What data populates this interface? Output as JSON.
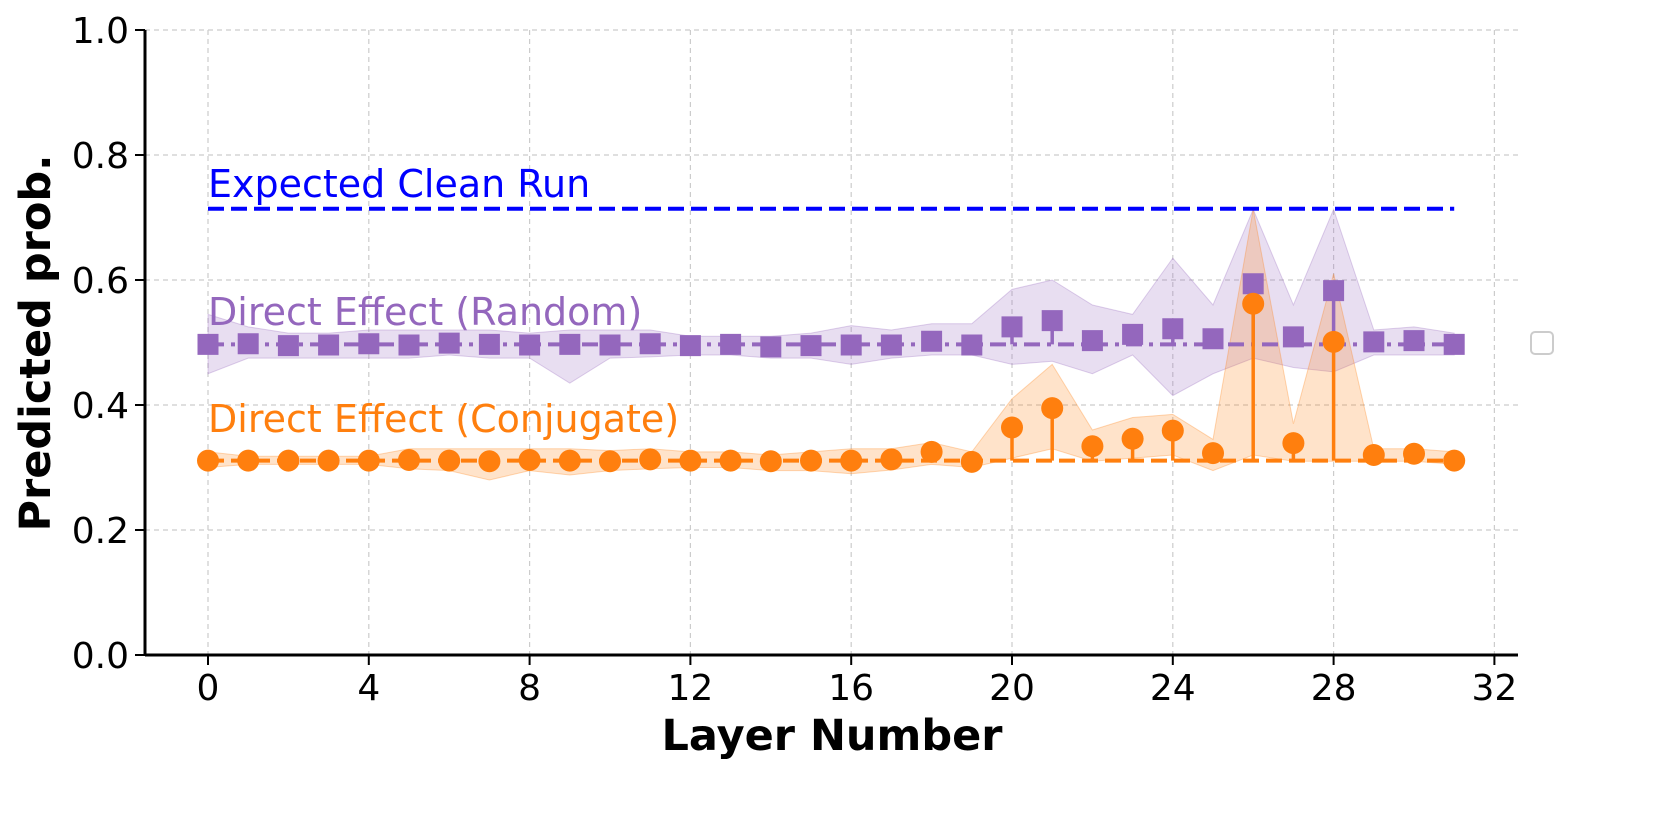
{
  "chart_data": {
    "type": "line",
    "xlabel": "Layer Number",
    "ylabel": "Predicted prob.",
    "xlim": [
      -1.5,
      32.6
    ],
    "ylim": [
      0.0,
      1.0
    ],
    "xticks": [
      0,
      4,
      8,
      12,
      16,
      20,
      24,
      28,
      32
    ],
    "yticks": [
      "0.0",
      "0.2",
      "0.4",
      "0.6",
      "0.8",
      "1.0"
    ],
    "grid": true,
    "grid_style": "dashed",
    "legend": "empty box at right edge",
    "reference_line": {
      "label": "Expected Clean Run",
      "value": 0.714,
      "x_range": [
        0,
        31
      ],
      "color": "#0000ff",
      "style": "dashed"
    },
    "series": [
      {
        "name": "Direct Effect (Random)",
        "color": "#9467bd",
        "marker": "square",
        "baseline": 0.497,
        "baseline_style": "dashdot",
        "x": [
          0,
          1,
          2,
          3,
          4,
          5,
          6,
          7,
          8,
          9,
          10,
          11,
          12,
          13,
          14,
          15,
          16,
          17,
          18,
          19,
          20,
          21,
          22,
          23,
          24,
          25,
          26,
          27,
          28,
          29,
          30,
          31
        ],
        "values": [
          0.497,
          0.498,
          0.495,
          0.496,
          0.498,
          0.496,
          0.499,
          0.497,
          0.496,
          0.497,
          0.496,
          0.498,
          0.495,
          0.497,
          0.493,
          0.495,
          0.496,
          0.496,
          0.502,
          0.496,
          0.525,
          0.535,
          0.503,
          0.513,
          0.522,
          0.506,
          0.594,
          0.509,
          0.583,
          0.501,
          0.503,
          0.497
        ],
        "band_upper": [
          0.545,
          0.525,
          0.515,
          0.515,
          0.52,
          0.52,
          0.52,
          0.52,
          0.515,
          0.52,
          0.52,
          0.52,
          0.51,
          0.51,
          0.51,
          0.515,
          0.527,
          0.52,
          0.53,
          0.53,
          0.585,
          0.6,
          0.56,
          0.545,
          0.635,
          0.56,
          0.713,
          0.56,
          0.713,
          0.52,
          0.525,
          0.515
        ],
        "band_lower": [
          0.45,
          0.475,
          0.475,
          0.475,
          0.475,
          0.475,
          0.48,
          0.475,
          0.475,
          0.435,
          0.475,
          0.477,
          0.48,
          0.48,
          0.475,
          0.475,
          0.465,
          0.475,
          0.48,
          0.48,
          0.465,
          0.47,
          0.45,
          0.48,
          0.415,
          0.45,
          0.475,
          0.46,
          0.453,
          0.48,
          0.48,
          0.48
        ]
      },
      {
        "name": "Direct Effect (Conjugate)",
        "color": "#ff7f0e",
        "marker": "circle",
        "baseline": 0.311,
        "baseline_style": "dashed",
        "x": [
          0,
          1,
          2,
          3,
          4,
          5,
          6,
          7,
          8,
          9,
          10,
          11,
          12,
          13,
          14,
          15,
          16,
          17,
          18,
          19,
          20,
          21,
          22,
          23,
          24,
          25,
          26,
          27,
          28,
          29,
          30,
          31
        ],
        "values": [
          0.311,
          0.311,
          0.311,
          0.311,
          0.311,
          0.312,
          0.311,
          0.31,
          0.312,
          0.311,
          0.31,
          0.313,
          0.311,
          0.311,
          0.31,
          0.311,
          0.311,
          0.313,
          0.325,
          0.309,
          0.364,
          0.395,
          0.334,
          0.346,
          0.359,
          0.323,
          0.562,
          0.339,
          0.501,
          0.32,
          0.322,
          0.311
        ],
        "band_upper": [
          0.325,
          0.318,
          0.318,
          0.318,
          0.318,
          0.33,
          0.33,
          0.33,
          0.33,
          0.33,
          0.327,
          0.33,
          0.325,
          0.325,
          0.32,
          0.325,
          0.33,
          0.33,
          0.34,
          0.325,
          0.41,
          0.465,
          0.36,
          0.38,
          0.385,
          0.345,
          0.713,
          0.37,
          0.61,
          0.33,
          0.33,
          0.325
        ],
        "band_lower": [
          0.3,
          0.305,
          0.305,
          0.305,
          0.305,
          0.298,
          0.295,
          0.28,
          0.295,
          0.288,
          0.295,
          0.298,
          0.3,
          0.3,
          0.295,
          0.295,
          0.29,
          0.296,
          0.305,
          0.3,
          0.315,
          0.33,
          0.31,
          0.315,
          0.32,
          0.295,
          0.32,
          0.31,
          0.31,
          0.31,
          0.31,
          0.305
        ]
      }
    ]
  }
}
